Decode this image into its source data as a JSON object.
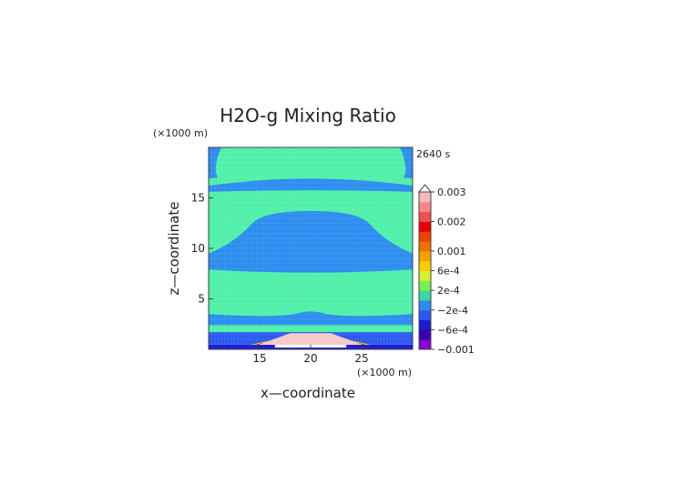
{
  "chart_data": {
    "type": "heatmap",
    "title": "H2O-g Mixing Ratio",
    "time_label": "2640 s",
    "xlabel": "x—coordinate",
    "ylabel": "z—coordinate",
    "x_unit": "(×1000 m)",
    "y_unit": "(×1000 m)",
    "xlim": [
      10,
      30
    ],
    "ylim": [
      0,
      20
    ],
    "x_ticks": [
      15,
      20,
      25
    ],
    "y_ticks": [
      5,
      10,
      15
    ],
    "grid": false,
    "colorbar": {
      "colors": [
        "#8a00d6",
        "#3a00b0",
        "#1a1ad0",
        "#2a58f0",
        "#2a8cf0",
        "#3cd8a0",
        "#7af050",
        "#d8f030",
        "#f8d000",
        "#f8a000",
        "#f07000",
        "#f04000",
        "#e80000",
        "#f05050",
        "#f88888",
        "#f8b8b8"
      ],
      "labels": [
        "0.003",
        "0.002",
        "0.001",
        "6e-4",
        "2e-4",
        "−2e-4",
        "−6e-4",
        "−0.001"
      ],
      "label_levels": [
        16,
        13,
        10,
        8,
        6,
        4,
        2,
        0
      ]
    },
    "field": {
      "background": "#4ef0a8",
      "bands": [
        {
          "name": "upper_layer",
          "color": "#2a8cf0",
          "z_min": 15.9,
          "z_max": 16.9
        },
        {
          "name": "middle_layer",
          "color": "#2a8cf0",
          "z_min": 7.9,
          "z_max": 13.7
        },
        {
          "name": "lower_layer",
          "color": "#2a8cf0",
          "z_min": 2.4,
          "z_max": 4.0
        }
      ],
      "surface_layer": {
        "color": "#1a1ad0",
        "z_max": 0.45
      },
      "bubble_core": {
        "color": "#f8c8c8",
        "x_center": 20,
        "half_width": 5.5,
        "z_top": 1.8
      }
    }
  }
}
